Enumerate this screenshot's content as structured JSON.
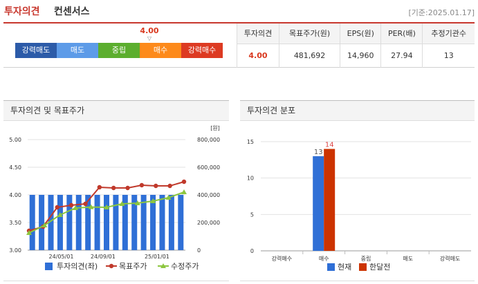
{
  "header": {
    "title": "투자의견",
    "subtitle": "컨센서스",
    "ref_date": "[기준:2025.01.17]"
  },
  "gauge": {
    "score": "4.00",
    "score_value": 4.0,
    "segments": [
      {
        "label": "강력매도",
        "color": "#2c5ba8"
      },
      {
        "label": "매도",
        "color": "#5d9be8"
      },
      {
        "label": "중립",
        "color": "#5cae2e"
      },
      {
        "label": "매수",
        "color": "#fd8a1b"
      },
      {
        "label": "강력매수",
        "color": "#dd3a22"
      }
    ]
  },
  "stats": {
    "headers": [
      "투자의견",
      "목표주가(원)",
      "EPS(원)",
      "PER(배)",
      "추정기관수"
    ],
    "values": [
      "4.00",
      "481,692",
      "14,960",
      "27.94",
      "13"
    ]
  },
  "panel1": {
    "title": "투자의견 및 목표주가",
    "unit": "[원]",
    "legend": [
      "투자의견(좌)",
      "목표주가",
      "수정주가"
    ]
  },
  "panel2": {
    "title": "투자의견 분포",
    "legend": [
      "현재",
      "한달전"
    ]
  },
  "chart_data": [
    {
      "type": "bar+line",
      "title": "투자의견 및 목표주가",
      "x_tick_labels": [
        "24/05/01",
        "24/09/01",
        "25/01/01"
      ],
      "y_left": {
        "ticks": [
          "3.00",
          "3.50",
          "4.00",
          "4.50",
          "5.00"
        ],
        "ylim": [
          3.0,
          5.0
        ]
      },
      "y_right": {
        "unit": "[원]",
        "ticks": [
          "0",
          "200,000",
          "400,000",
          "600,000",
          "800,000"
        ],
        "ylim": [
          0,
          800000
        ]
      },
      "series": [
        {
          "name": "투자의견(좌)",
          "kind": "bar",
          "axis": "left",
          "color": "#2f6fd6",
          "values": [
            4.0,
            4.0,
            4.0,
            4.0,
            4.0,
            4.0,
            4.0,
            4.0,
            4.0,
            4.0,
            4.0,
            4.0,
            4.0,
            4.0,
            4.0,
            4.0,
            4.0
          ]
        },
        {
          "name": "목표주가",
          "kind": "line",
          "axis": "right",
          "color": "#c0392b",
          "values": [
            140000,
            170000,
            310000,
            325000,
            335000,
            455000,
            450000,
            450000,
            470000,
            465000,
            465000,
            495000
          ]
        },
        {
          "name": "수정주가",
          "kind": "line",
          "axis": "right",
          "color": "#8cc63f",
          "values": [
            125000,
            180000,
            255000,
            305000,
            312000,
            310000,
            335000,
            340000,
            355000,
            380000,
            420000
          ]
        }
      ],
      "grid": true
    },
    {
      "type": "bar",
      "title": "투자의견 분포",
      "categories": [
        "강력매수",
        "매수",
        "중립",
        "매도",
        "강력매도"
      ],
      "ylim": [
        0,
        15
      ],
      "y_ticks": [
        "0",
        "5",
        "10",
        "15"
      ],
      "series": [
        {
          "name": "현재",
          "color": "#2f6fd6",
          "values": [
            0,
            13,
            0,
            0,
            0
          ],
          "labels": [
            "",
            "13",
            "",
            "",
            ""
          ]
        },
        {
          "name": "한달전",
          "color": "#cc3300",
          "values": [
            0,
            14,
            0,
            0,
            0
          ],
          "labels": [
            "",
            "14",
            "",
            "",
            ""
          ]
        }
      ],
      "grid": true
    }
  ]
}
